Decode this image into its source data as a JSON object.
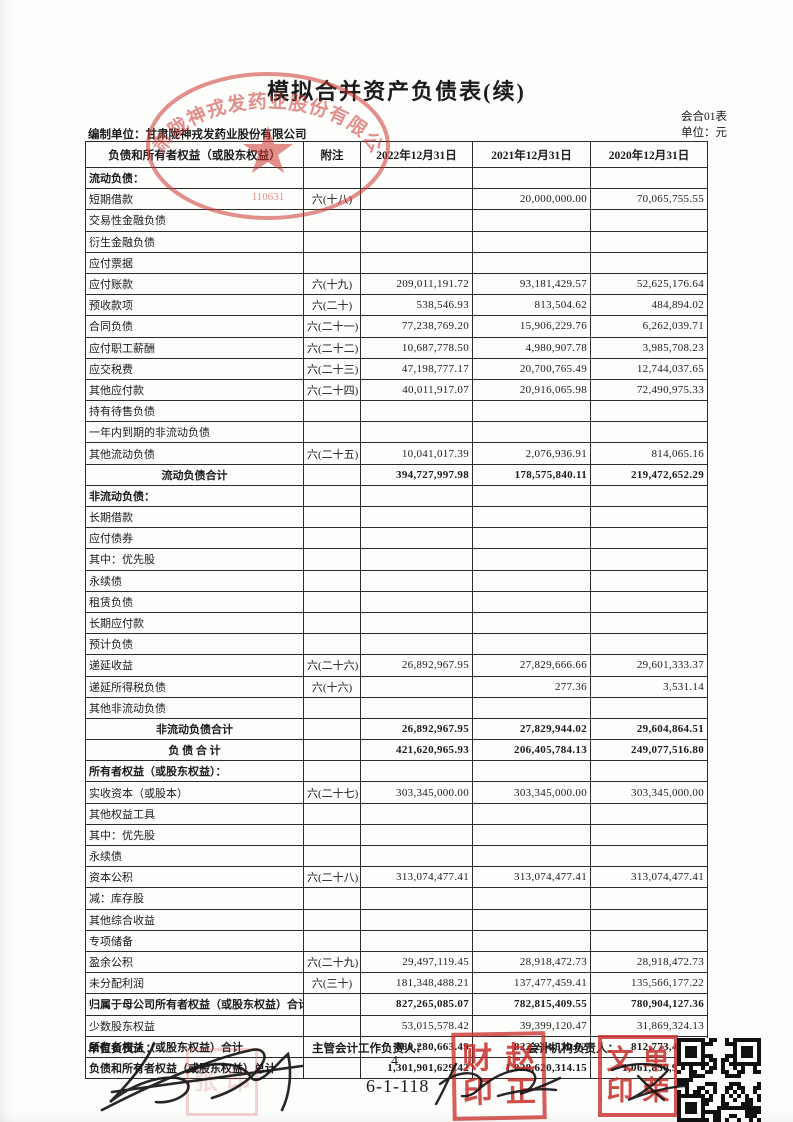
{
  "page": {
    "title": "模拟合并资产负债表(续)",
    "form_code": "会合01表",
    "unit_label": "单位：元",
    "prepared_by": "编制单位：甘肃陇神戎发药业股份有限公司"
  },
  "table": {
    "headers": [
      "负债和所有者权益（或股东权益）",
      "附注",
      "2022年12月31日",
      "2021年12月31日",
      "2020年12月31日"
    ],
    "rows": [
      {
        "label": "流动负债：",
        "note": "",
        "v2022": "",
        "v2021": "",
        "v2020": "",
        "indent": 0,
        "bold": true,
        "center": false
      },
      {
        "label": "短期借款",
        "note": "六(十八)",
        "v2022": "",
        "v2021": "20,000,000.00",
        "v2020": "70,065,755.55",
        "indent": 1,
        "bold": false,
        "center": false
      },
      {
        "label": "交易性金融负债",
        "note": "",
        "v2022": "",
        "v2021": "",
        "v2020": "",
        "indent": 1,
        "bold": false,
        "center": false
      },
      {
        "label": "衍生金融负债",
        "note": "",
        "v2022": "",
        "v2021": "",
        "v2020": "",
        "indent": 1,
        "bold": false,
        "center": false
      },
      {
        "label": "应付票据",
        "note": "",
        "v2022": "",
        "v2021": "",
        "v2020": "",
        "indent": 1,
        "bold": false,
        "center": false
      },
      {
        "label": "应付账款",
        "note": "六(十九)",
        "v2022": "209,011,191.72",
        "v2021": "93,181,429.57",
        "v2020": "52,625,176.64",
        "indent": 1,
        "bold": false,
        "center": false
      },
      {
        "label": "预收款项",
        "note": "六(二十)",
        "v2022": "538,546.93",
        "v2021": "813,504.62",
        "v2020": "484,894.02",
        "indent": 1,
        "bold": false,
        "center": false
      },
      {
        "label": "合同负债",
        "note": "六(二十一)",
        "v2022": "77,238,769.20",
        "v2021": "15,906,229.76",
        "v2020": "6,262,039.71",
        "indent": 1,
        "bold": false,
        "center": false
      },
      {
        "label": "应付职工薪酬",
        "note": "六(二十二)",
        "v2022": "10,687,778.50",
        "v2021": "4,980,907.78",
        "v2020": "3,985,708.23",
        "indent": 1,
        "bold": false,
        "center": false
      },
      {
        "label": "应交税费",
        "note": "六(二十三)",
        "v2022": "47,198,777.17",
        "v2021": "20,700,765.49",
        "v2020": "12,744,037.65",
        "indent": 1,
        "bold": false,
        "center": false
      },
      {
        "label": "其他应付款",
        "note": "六(二十四)",
        "v2022": "40,011,917.07",
        "v2021": "20,916,065.98",
        "v2020": "72,490,975.33",
        "indent": 1,
        "bold": false,
        "center": false
      },
      {
        "label": "持有待售负债",
        "note": "",
        "v2022": "",
        "v2021": "",
        "v2020": "",
        "indent": 1,
        "bold": false,
        "center": false
      },
      {
        "label": "一年内到期的非流动负债",
        "note": "",
        "v2022": "",
        "v2021": "",
        "v2020": "",
        "indent": 1,
        "bold": false,
        "center": false
      },
      {
        "label": "其他流动负债",
        "note": "六(二十五)",
        "v2022": "10,041,017.39",
        "v2021": "2,076,936.91",
        "v2020": "814,065.16",
        "indent": 1,
        "bold": false,
        "center": false
      },
      {
        "label": "流动负债合计",
        "note": "",
        "v2022": "394,727,997.98",
        "v2021": "178,575,840.11",
        "v2020": "219,472,652.29",
        "indent": 0,
        "bold": true,
        "center": true
      },
      {
        "label": "非流动负债：",
        "note": "",
        "v2022": "",
        "v2021": "",
        "v2020": "",
        "indent": 0,
        "bold": true,
        "center": false
      },
      {
        "label": "长期借款",
        "note": "",
        "v2022": "",
        "v2021": "",
        "v2020": "",
        "indent": 1,
        "bold": false,
        "center": false
      },
      {
        "label": "应付债券",
        "note": "",
        "v2022": "",
        "v2021": "",
        "v2020": "",
        "indent": 1,
        "bold": false,
        "center": false
      },
      {
        "label": "其中：优先股",
        "note": "",
        "v2022": "",
        "v2021": "",
        "v2020": "",
        "indent": 2,
        "bold": false,
        "center": false
      },
      {
        "label": "永续债",
        "note": "",
        "v2022": "",
        "v2021": "",
        "v2020": "",
        "indent": 3,
        "bold": false,
        "center": false
      },
      {
        "label": "租赁负债",
        "note": "",
        "v2022": "",
        "v2021": "",
        "v2020": "",
        "indent": 1,
        "bold": false,
        "center": false
      },
      {
        "label": "长期应付款",
        "note": "",
        "v2022": "",
        "v2021": "",
        "v2020": "",
        "indent": 1,
        "bold": false,
        "center": false
      },
      {
        "label": "预计负债",
        "note": "",
        "v2022": "",
        "v2021": "",
        "v2020": "",
        "indent": 1,
        "bold": false,
        "center": false
      },
      {
        "label": "递延收益",
        "note": "六(二十六)",
        "v2022": "26,892,967.95",
        "v2021": "27,829,666.66",
        "v2020": "29,601,333.37",
        "indent": 1,
        "bold": false,
        "center": false
      },
      {
        "label": "递延所得税负债",
        "note": "六(十六)",
        "v2022": "",
        "v2021": "277.36",
        "v2020": "3,531.14",
        "indent": 1,
        "bold": false,
        "center": false
      },
      {
        "label": "其他非流动负债",
        "note": "",
        "v2022": "",
        "v2021": "",
        "v2020": "",
        "indent": 1,
        "bold": false,
        "center": false
      },
      {
        "label": "非流动负债合计",
        "note": "",
        "v2022": "26,892,967.95",
        "v2021": "27,829,944.02",
        "v2020": "29,604,864.51",
        "indent": 0,
        "bold": true,
        "center": true
      },
      {
        "label": "负 债 合 计",
        "note": "",
        "v2022": "421,620,965.93",
        "v2021": "206,405,784.13",
        "v2020": "249,077,516.80",
        "indent": 0,
        "bold": true,
        "center": true
      },
      {
        "label": "所有者权益（或股东权益）：",
        "note": "",
        "v2022": "",
        "v2021": "",
        "v2020": "",
        "indent": 0,
        "bold": true,
        "center": false
      },
      {
        "label": "实收资本（或股本）",
        "note": "六(二十七)",
        "v2022": "303,345,000.00",
        "v2021": "303,345,000.00",
        "v2020": "303,345,000.00",
        "indent": 1,
        "bold": false,
        "center": false
      },
      {
        "label": "其他权益工具",
        "note": "",
        "v2022": "",
        "v2021": "",
        "v2020": "",
        "indent": 1,
        "bold": false,
        "center": false
      },
      {
        "label": "其中：优先股",
        "note": "",
        "v2022": "",
        "v2021": "",
        "v2020": "",
        "indent": 2,
        "bold": false,
        "center": false
      },
      {
        "label": "永续债",
        "note": "",
        "v2022": "",
        "v2021": "",
        "v2020": "",
        "indent": 3,
        "bold": false,
        "center": false
      },
      {
        "label": "资本公积",
        "note": "六(二十八)",
        "v2022": "313,074,477.41",
        "v2021": "313,074,477.41",
        "v2020": "313,074,477.41",
        "indent": 1,
        "bold": false,
        "center": false
      },
      {
        "label": "减：库存股",
        "note": "",
        "v2022": "",
        "v2021": "",
        "v2020": "",
        "indent": 1,
        "bold": false,
        "center": false
      },
      {
        "label": "其他综合收益",
        "note": "",
        "v2022": "",
        "v2021": "",
        "v2020": "",
        "indent": 1,
        "bold": false,
        "center": false
      },
      {
        "label": "专项储备",
        "note": "",
        "v2022": "",
        "v2021": "",
        "v2020": "",
        "indent": 1,
        "bold": false,
        "center": false
      },
      {
        "label": "盈余公积",
        "note": "六(二十九)",
        "v2022": "29,497,119.45",
        "v2021": "28,918,472.73",
        "v2020": "28,918,472.73",
        "indent": 1,
        "bold": false,
        "center": false
      },
      {
        "label": "未分配利润",
        "note": "六(三十)",
        "v2022": "181,348,488.21",
        "v2021": "137,477,459.41",
        "v2020": "135,566,177.22",
        "indent": 1,
        "bold": false,
        "center": false
      },
      {
        "label": "归属于母公司所有者权益（或股东权益）合计",
        "note": "",
        "v2022": "827,265,085.07",
        "v2021": "782,815,409.55",
        "v2020": "780,904,127.36",
        "indent": 0,
        "bold": true,
        "center": false
      },
      {
        "label": "少数股东权益",
        "note": "",
        "v2022": "53,015,578.42",
        "v2021": "39,399,120.47",
        "v2020": "31,869,324.13",
        "indent": 1,
        "bold": false,
        "center": false
      },
      {
        "label": "所有者权益（或股东权益）合计",
        "note": "",
        "v2022": "880,280,663.49",
        "v2021": "822,214,530.02",
        "v2020": "812,773,451.49",
        "indent": 4,
        "bold": true,
        "center": false
      },
      {
        "label": "负债和所有者权益（或股东权益）总计",
        "note": "",
        "v2022": "1,301,901,629.42",
        "v2021": "1,028,620,314.15",
        "v2020": "1,061,850,968.29",
        "indent": 3,
        "bold": true,
        "center": false
      }
    ]
  },
  "footer": {
    "unit_head_label": "单位负责人：",
    "chief_accounting_label": "主管会计工作负责人：",
    "accounting_org_label": "会计机构负责人：",
    "page_no": "6-1-118",
    "page_mark": "4"
  },
  "stamps": {
    "company_seal": {
      "text": "甘肃陇神戎发药业股份有限公司",
      "serial": "110631"
    },
    "mid_stamp_chars": [
      "财",
      "赵",
      "印",
      "正"
    ],
    "right_stamp_chars": [
      "文",
      "单",
      "印",
      "荣"
    ],
    "faint_stamp_chars": [
      "张",
      "印"
    ],
    "seal_color": "#cd3732"
  }
}
